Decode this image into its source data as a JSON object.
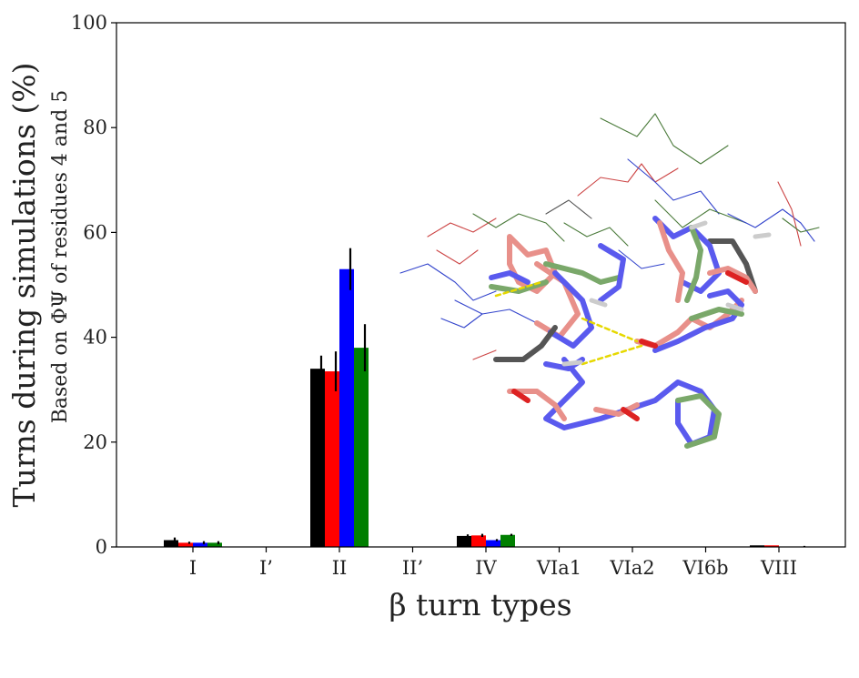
{
  "chart_data": {
    "type": "bar",
    "title": "",
    "xlabel": "β turn types",
    "ylabel": "Turns during simulations (%)",
    "ylabel_secondary": "Based on ΦΨ of residues 4 and 5",
    "ylim": [
      0,
      100
    ],
    "yticks": [
      0,
      20,
      40,
      60,
      80,
      100
    ],
    "grid": false,
    "legend": "none",
    "categories": [
      "I",
      "I’",
      "II",
      "II’",
      "IV",
      "VIa1",
      "VIa2",
      "VI6b",
      "VIII"
    ],
    "series": [
      {
        "color": "#000000",
        "values": [
          1.3,
          0,
          34.0,
          0,
          2.1,
          0,
          0,
          0,
          0.3
        ],
        "errors": [
          0.5,
          0,
          2.5,
          0,
          0.3,
          0,
          0,
          0,
          0
        ]
      },
      {
        "color": "#ff0000",
        "values": [
          0.8,
          0,
          33.5,
          0,
          2.2,
          0,
          0,
          0,
          0.3
        ],
        "errors": [
          0.2,
          0,
          3.8,
          0,
          0.3,
          0,
          0,
          0,
          0
        ]
      },
      {
        "color": "#0000ff",
        "values": [
          0.8,
          0,
          53.0,
          0,
          1.3,
          0,
          0,
          0,
          0
        ],
        "errors": [
          0.3,
          0,
          4.0,
          0,
          0.2,
          0,
          0,
          0,
          0
        ]
      },
      {
        "color": "#007f00",
        "values": [
          0.8,
          0,
          38.0,
          0,
          2.3,
          0,
          0,
          0,
          0
        ],
        "errors": [
          0.3,
          0,
          4.5,
          0,
          0.2,
          0,
          0,
          0,
          0.2
        ]
      }
    ]
  }
}
